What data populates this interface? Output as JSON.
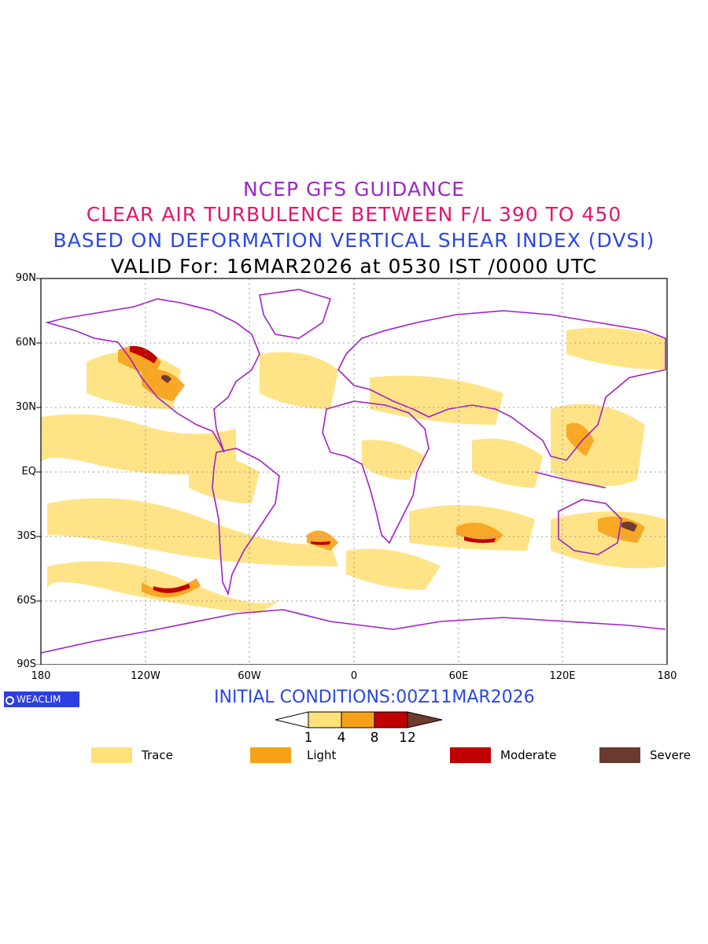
{
  "titles": {
    "line1": "NCEP GFS GUIDANCE",
    "line2": "CLEAR AIR TURBULENCE BETWEEN F/L 390 TO 450",
    "line3": "BASED ON DEFORMATION VERTICAL SHEAR INDEX (DVSI)",
    "line4": "VALID For: 16MAR2026 at 0530 IST /0000 UTC"
  },
  "axes": {
    "y_ticks": [
      "90N",
      "60N",
      "30N",
      "EQ",
      "30S",
      "60S",
      "90S"
    ],
    "x_ticks": [
      "180",
      "120W",
      "60W",
      "0",
      "60E",
      "120E",
      "180"
    ]
  },
  "logo": "WEACLIM",
  "initial_conditions": "INITIAL CONDITIONS:00Z11MAR2026",
  "colorbar": {
    "ticks": [
      "1",
      "4",
      "8",
      "12"
    ],
    "colors": [
      "#ffe17a",
      "#f7a11a",
      "#c00000",
      "#6e3b2e"
    ]
  },
  "legend": [
    {
      "label": "Trace",
      "color": "#ffe17a"
    },
    {
      "label": "Light",
      "color": "#f7a11a"
    },
    {
      "label": "Moderate",
      "color": "#c00000"
    },
    {
      "label": "Severe",
      "color": "#6b3a2f"
    }
  ],
  "map_colors": {
    "coastline": "#a020c8",
    "grid": "#9a9a9a"
  }
}
